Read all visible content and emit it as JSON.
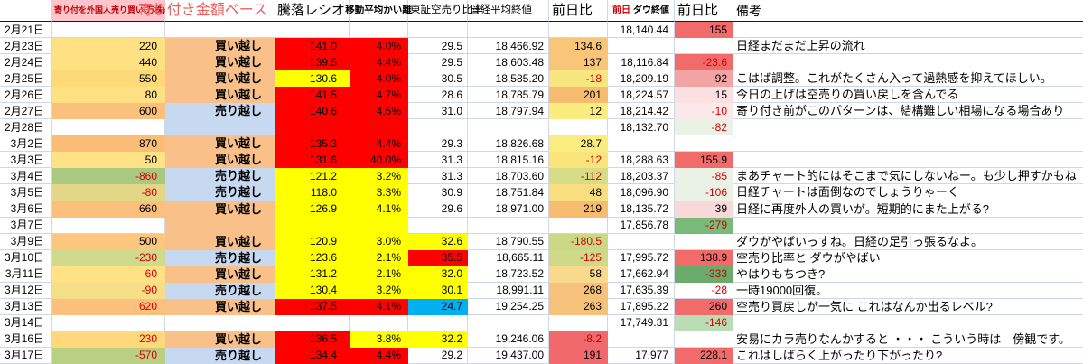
{
  "header": {
    "col_foreign": "寄り付を外国人売り買い(万株)",
    "col_amount_base": "寄り付き金額ベース",
    "col_ratio": "騰落レシオ",
    "col_ma_divergence": "移動平均かい離",
    "col_short_ratio": "東証空売り比率",
    "col_nikkei_close": "日経平均終値",
    "col_nikkei_change": "前日比",
    "col_dow_prev": "前日",
    "col_dow_close": "ダウ終値",
    "col_dow_change": "前日比",
    "col_remarks": "備考"
  },
  "colors": {
    "ratio_hot": "#FF0000",
    "ratio_warm": "#FFFF00",
    "short_low": "#00B0F0",
    "buy_fill": "#F9C08A",
    "sell_fill": "#C6D9F0",
    "header_pink": "#FFC5CC",
    "negative_text": "#D80000",
    "dow_up_fill": "#F26B6B",
    "dow_down_fill": "#79B979"
  },
  "rows": [
    {
      "date": "2月21日",
      "cells": [
        [
          "",
          "",
          ""
        ],
        [
          "",
          "",
          ""
        ],
        [
          "",
          "",
          ""
        ],
        [
          "",
          "",
          ""
        ],
        [
          "",
          "",
          ""
        ],
        [
          "",
          "",
          ""
        ],
        [
          "",
          "",
          ""
        ],
        [
          "18,140.44",
          "",
          ""
        ],
        [
          "155",
          "#F26B6B",
          ""
        ],
        [
          "",
          "",
          ""
        ]
      ]
    },
    {
      "date": "2月23日",
      "cells": [
        [
          "220",
          "#FFE083",
          ""
        ],
        [
          "買い越し",
          "#F9C08A",
          ""
        ],
        [
          "141.0",
          "#FF0000",
          ""
        ],
        [
          "4.0%",
          "#FF0000",
          ""
        ],
        [
          "29.5",
          "",
          ""
        ],
        [
          "18,466.92",
          "",
          ""
        ],
        [
          "134.6",
          "#F9C579",
          ""
        ],
        [
          "",
          "",
          ""
        ],
        [
          "",
          "",
          ""
        ],
        [
          "日経まだまだ上昇の流れ",
          "",
          ""
        ]
      ]
    },
    {
      "date": "2月24日",
      "cells": [
        [
          "440",
          "#FFE083",
          ""
        ],
        [
          "買い越し",
          "#F9C08A",
          ""
        ],
        [
          "139.5",
          "#FF0000",
          ""
        ],
        [
          "4.4%",
          "#FF0000",
          ""
        ],
        [
          "29.5",
          "",
          ""
        ],
        [
          "18,603.48",
          "",
          ""
        ],
        [
          "137",
          "#F9C579",
          ""
        ],
        [
          "18,116.84",
          "",
          ""
        ],
        [
          "-23.6",
          "#F26B6B",
          "#D80000"
        ],
        [
          "",
          "",
          ""
        ]
      ]
    },
    {
      "date": "2月25日",
      "cells": [
        [
          "550",
          "#FED978",
          ""
        ],
        [
          "買い越し",
          "#F9C08A",
          ""
        ],
        [
          "130.6",
          "#FFFF00",
          ""
        ],
        [
          "4.0%",
          "#FF0000",
          ""
        ],
        [
          "30.5",
          "",
          ""
        ],
        [
          "18,585.20",
          "",
          ""
        ],
        [
          "-18",
          "#F7E57F",
          "#D80000"
        ],
        [
          "18,209.19",
          "",
          ""
        ],
        [
          "92",
          "#F2A3A3",
          ""
        ],
        [
          "こはば調整。これがたくさん入って過熱感を抑えてほしい。",
          "",
          ""
        ]
      ]
    },
    {
      "date": "2月26日",
      "cells": [
        [
          "80",
          "#FFE083",
          ""
        ],
        [
          "買い越し",
          "#F9C08A",
          ""
        ],
        [
          "141.5",
          "#FF0000",
          ""
        ],
        [
          "4.7%",
          "#FF0000",
          ""
        ],
        [
          "28.6",
          "",
          ""
        ],
        [
          "18,785.79",
          "",
          ""
        ],
        [
          "201",
          "#F7BC6F",
          ""
        ],
        [
          "18,224.57",
          "",
          ""
        ],
        [
          "15",
          "#FAE0E0",
          ""
        ],
        [
          "今日の上げは空売りの買い戻しを含んでる",
          "",
          ""
        ]
      ]
    },
    {
      "date": "2月27日",
      "cells": [
        [
          "600",
          "#FBC07C",
          ""
        ],
        [
          "売り越し",
          "#C6D9F0",
          ""
        ],
        [
          "140.6",
          "#FF0000",
          ""
        ],
        [
          "4.5%",
          "#FF0000",
          ""
        ],
        [
          "31.0",
          "",
          ""
        ],
        [
          "18,797.94",
          "",
          ""
        ],
        [
          "12",
          "#FBEC80",
          ""
        ],
        [
          "18,214.42",
          "",
          ""
        ],
        [
          "-10",
          "#FBE9E9",
          "#D80000"
        ],
        [
          "寄り付き前がこのパターンは、結構難しい相場になる場合あり",
          "",
          ""
        ]
      ]
    },
    {
      "date": "2月28日",
      "cells": [
        [
          "",
          "",
          ""
        ],
        [
          "",
          "#C6D9F0",
          ""
        ],
        [
          "",
          "#FF0000",
          ""
        ],
        [
          "",
          "#FF0000",
          ""
        ],
        [
          "",
          "",
          ""
        ],
        [
          "",
          "",
          ""
        ],
        [
          "",
          "",
          ""
        ],
        [
          "18,132.70",
          "",
          ""
        ],
        [
          "-82",
          "#E9F2E5",
          "#D80000"
        ],
        [
          "",
          "",
          ""
        ]
      ]
    },
    {
      "date": "3月2日",
      "cells": [
        [
          "870",
          "#FBBD76",
          ""
        ],
        [
          "買い越し",
          "#F9C08A",
          ""
        ],
        [
          "135.3",
          "#FF0000",
          ""
        ],
        [
          "4.4%",
          "#FF0000",
          ""
        ],
        [
          "29.3",
          "",
          ""
        ],
        [
          "18,826.68",
          "",
          ""
        ],
        [
          "28.7",
          "#FBEC80",
          ""
        ],
        [
          "",
          "",
          ""
        ],
        [
          "",
          "",
          ""
        ],
        [
          "",
          "",
          ""
        ]
      ]
    },
    {
      "date": "3月3日",
      "cells": [
        [
          "50",
          "#FFE285",
          ""
        ],
        [
          "買い越し",
          "#F9C08A",
          ""
        ],
        [
          "131.6",
          "#FF0000",
          ""
        ],
        [
          "40.0%",
          "#FF0000",
          ""
        ],
        [
          "31.3",
          "",
          ""
        ],
        [
          "18,815.16",
          "",
          ""
        ],
        [
          "-12",
          "#FAE47C",
          "#D80000"
        ],
        [
          "18,288.63",
          "",
          ""
        ],
        [
          "155.9",
          "#F26B6B",
          ""
        ],
        [
          "",
          "",
          ""
        ]
      ]
    },
    {
      "date": "3月4日",
      "cells": [
        [
          "-860",
          "#A8C97F",
          "#D80000"
        ],
        [
          "売り越し",
          "#C6D9F0",
          ""
        ],
        [
          "121.2",
          "#FFFF00",
          ""
        ],
        [
          "3.2%",
          "#FFFF00",
          ""
        ],
        [
          "31.3",
          "",
          ""
        ],
        [
          "18,703.60",
          "",
          ""
        ],
        [
          "-112",
          "#D6DD86",
          "#D80000"
        ],
        [
          "18,203.37",
          "",
          ""
        ],
        [
          "-85",
          "#E9F2E5",
          "#D80000"
        ],
        [
          "まあチャート的にはそこまで気にしないねー。も少し押すかもね",
          "",
          ""
        ]
      ]
    },
    {
      "date": "3月5日",
      "cells": [
        [
          "-80",
          "#E3D687",
          "#D80000"
        ],
        [
          "売り越し",
          "#C6D9F0",
          ""
        ],
        [
          "118.0",
          "#FFFF00",
          ""
        ],
        [
          "3.3%",
          "#FFFF00",
          ""
        ],
        [
          "30.9",
          "",
          ""
        ],
        [
          "18,751.84",
          "",
          ""
        ],
        [
          "48",
          "#F9DE80",
          ""
        ],
        [
          "18,096.90",
          "",
          ""
        ],
        [
          "-106",
          "#E9F2E5",
          "#D80000"
        ],
        [
          "日経チャートは面倒なのでしょうりゃーく",
          "",
          ""
        ]
      ]
    },
    {
      "date": "3月6日",
      "cells": [
        [
          "660",
          "#FBC07C",
          ""
        ],
        [
          "買い越し",
          "#F9C08A",
          ""
        ],
        [
          "126.9",
          "#FFFF00",
          ""
        ],
        [
          "4.1%",
          "#FFFF00",
          ""
        ],
        [
          "29.6",
          "",
          ""
        ],
        [
          "18,971.00",
          "",
          ""
        ],
        [
          "219",
          "#F7BC6F",
          ""
        ],
        [
          "18,135.72",
          "",
          ""
        ],
        [
          "39",
          "#F8D8D8",
          ""
        ],
        [
          "日経に再度外人の買いが。短期的にまた上がる?",
          "",
          ""
        ]
      ]
    },
    {
      "date": "3月7日",
      "cells": [
        [
          "",
          "",
          ""
        ],
        [
          "",
          "#F9C08A",
          ""
        ],
        [
          "",
          "#FFFF00",
          ""
        ],
        [
          "",
          "#FFFF00",
          ""
        ],
        [
          "",
          "",
          ""
        ],
        [
          "",
          "",
          ""
        ],
        [
          "",
          "",
          ""
        ],
        [
          "17,856.78",
          "",
          ""
        ],
        [
          "-279",
          "#79B979",
          "#D80000"
        ],
        [
          "",
          "",
          ""
        ]
      ]
    },
    {
      "date": "3月9日",
      "cells": [
        [
          "500",
          "#FCC67E",
          ""
        ],
        [
          "買い越し",
          "#F9C08A",
          ""
        ],
        [
          "120.9",
          "#FFFF00",
          ""
        ],
        [
          "3.0%",
          "#FFFF00",
          ""
        ],
        [
          "32.6",
          "#FFFF00",
          ""
        ],
        [
          "18,790.55",
          "",
          ""
        ],
        [
          "-180.5",
          "#CBD885",
          "#D80000"
        ],
        [
          "",
          "",
          ""
        ],
        [
          "",
          "",
          ""
        ],
        [
          "ダウがやばいっすね。日経の足引っ張るなよ。",
          "",
          ""
        ]
      ]
    },
    {
      "date": "3月10日",
      "cells": [
        [
          "-230",
          "#CFDA8C",
          "#D80000"
        ],
        [
          "売り越し",
          "#C6D9F0",
          ""
        ],
        [
          "123.6",
          "#FFFF00",
          ""
        ],
        [
          "2.1%",
          "#FFFF00",
          ""
        ],
        [
          "35.5",
          "#FF0000",
          ""
        ],
        [
          "18,665.11",
          "",
          ""
        ],
        [
          "-125",
          "#CFDA88",
          "#D80000"
        ],
        [
          "17,995.72",
          "",
          ""
        ],
        [
          "138.9",
          "#F26B6B",
          ""
        ],
        [
          "空売り比率と ダウがやばい",
          "",
          ""
        ]
      ]
    },
    {
      "date": "3月11日",
      "cells": [
        [
          "60",
          "#FFE285",
          "#D80000"
        ],
        [
          "買い越し",
          "#F9C08A",
          ""
        ],
        [
          "131.2",
          "#FFFF00",
          ""
        ],
        [
          "2.1%",
          "#FFFF00",
          ""
        ],
        [
          "32.0",
          "#FFFF00",
          ""
        ],
        [
          "18,723.52",
          "",
          ""
        ],
        [
          "58",
          "#F9D98B",
          ""
        ],
        [
          "17,662.94",
          "",
          ""
        ],
        [
          "-333",
          "#6BAB6B",
          "#D80000"
        ],
        [
          "やはりもちつき?",
          "",
          ""
        ]
      ]
    },
    {
      "date": "3月12日",
      "cells": [
        [
          "-90",
          "#F4DF88",
          "#D80000"
        ],
        [
          "売り越し",
          "#C6D9F0",
          ""
        ],
        [
          "130.4",
          "#FFFF00",
          ""
        ],
        [
          "3.2%",
          "#FFFF00",
          ""
        ],
        [
          "30.1",
          "#FFFF00",
          ""
        ],
        [
          "18,991.11",
          "",
          ""
        ],
        [
          "268",
          "#F6C27B",
          ""
        ],
        [
          "17,635.39",
          "",
          ""
        ],
        [
          "-28",
          "",
          "#D80000"
        ],
        [
          "一時19000回復。",
          "",
          ""
        ]
      ]
    },
    {
      "date": "3月13日",
      "cells": [
        [
          "620",
          "#FBC07C",
          "#D80000"
        ],
        [
          "買い越し",
          "#F9C08A",
          ""
        ],
        [
          "137.5",
          "#FF0000",
          ""
        ],
        [
          "4.1%",
          "#FF0000",
          ""
        ],
        [
          "24.7",
          "#00B0F0",
          ""
        ],
        [
          "19,254.25",
          "",
          ""
        ],
        [
          "263",
          "#F6C27B",
          ""
        ],
        [
          "17,895.22",
          "",
          ""
        ],
        [
          "260",
          "#F26B6B",
          ""
        ],
        [
          "空売り買戻しが一気に これはなんか出るレベル?",
          "",
          ""
        ]
      ]
    },
    {
      "date": "3月14日",
      "cells": [
        [
          "",
          "",
          ""
        ],
        [
          "",
          "",
          ""
        ],
        [
          "",
          "",
          ""
        ],
        [
          "",
          "",
          ""
        ],
        [
          "",
          "",
          ""
        ],
        [
          "",
          "",
          ""
        ],
        [
          "",
          "",
          ""
        ],
        [
          "17,749.31",
          "",
          ""
        ],
        [
          "-146",
          "#BADDB6",
          "#D80000"
        ],
        [
          "",
          "",
          ""
        ]
      ]
    },
    {
      "date": "3月16日",
      "cells": [
        [
          "230",
          "#FFD87B",
          "#D80000"
        ],
        [
          "買い越し",
          "#F9C08A",
          ""
        ],
        [
          "136.5",
          "#FF0000",
          ""
        ],
        [
          "3.8%",
          "#FFFF00",
          ""
        ],
        [
          "32.2",
          "#FFFF00",
          ""
        ],
        [
          "19,246.06",
          "",
          ""
        ],
        [
          "-8.2",
          "#F2696C",
          "#C00000"
        ],
        [
          "",
          "",
          ""
        ],
        [
          "",
          "",
          ""
        ],
        [
          "安易にカラ売りなんかすると ・・・ こういう時は　傍観です。",
          "",
          ""
        ]
      ]
    },
    {
      "date": "3月17日",
      "cells": [
        [
          "-570",
          "#B9CF82",
          "#D80000"
        ],
        [
          "売り越し",
          "#C6D9F0",
          ""
        ],
        [
          "134.4",
          "#FF0000",
          ""
        ],
        [
          "4.4%",
          "#FF0000",
          ""
        ],
        [
          "29.2",
          "",
          ""
        ],
        [
          "19,437.00",
          "",
          ""
        ],
        [
          "191",
          "#F2696C",
          ""
        ],
        [
          "17,977",
          "",
          ""
        ],
        [
          "228.1",
          "#F26B6B",
          ""
        ],
        [
          "これはしばらく上がったり下がったり?",
          "",
          ""
        ]
      ]
    }
  ]
}
